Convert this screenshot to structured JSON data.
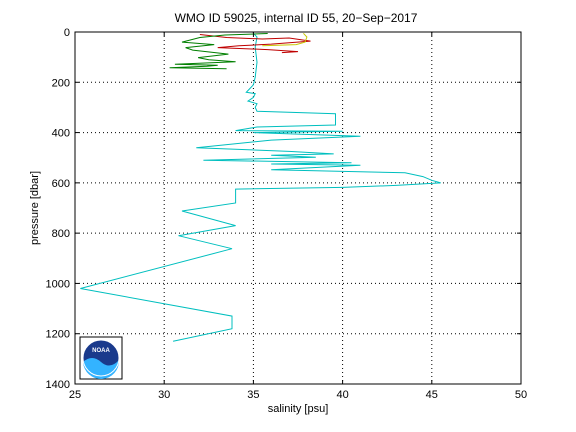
{
  "chart_data": {
    "type": "line",
    "title": "WMO ID 59025, internal ID 55, 20−Sep−2017",
    "xlabel": "salinity [psu]",
    "ylabel": "pressure [dbar]",
    "xlim": [
      25,
      50
    ],
    "ylim": [
      0,
      1400
    ],
    "y_reversed": true,
    "x_ticks": [
      25,
      30,
      35,
      40,
      45,
      50
    ],
    "y_ticks": [
      0,
      200,
      400,
      600,
      800,
      1000,
      1200,
      1400
    ],
    "grid": true,
    "logo": "NOAA",
    "series": [
      {
        "color": "#00bfbf",
        "points": [
          [
            35.0,
            5
          ],
          [
            35.2,
            20
          ],
          [
            35.1,
            60
          ],
          [
            35.2,
            120
          ],
          [
            35.1,
            180
          ],
          [
            35.0,
            210
          ],
          [
            34.8,
            225
          ],
          [
            34.6,
            240
          ],
          [
            35.1,
            245
          ],
          [
            35.0,
            260
          ],
          [
            34.7,
            275
          ],
          [
            35.2,
            285
          ],
          [
            35.1,
            300
          ],
          [
            35.2,
            315
          ],
          [
            39.6,
            325
          ],
          [
            39.6,
            370
          ],
          [
            35.2,
            378
          ],
          [
            34.0,
            392
          ],
          [
            40.0,
            395
          ],
          [
            35.0,
            400
          ],
          [
            41.0,
            415
          ],
          [
            36.0,
            430
          ],
          [
            31.8,
            460
          ],
          [
            37.0,
            475
          ],
          [
            39.5,
            485
          ],
          [
            36.0,
            490
          ],
          [
            38.5,
            498
          ],
          [
            32.2,
            510
          ],
          [
            40.5,
            520
          ],
          [
            36.0,
            525
          ],
          [
            41.0,
            530
          ],
          [
            36.0,
            548
          ],
          [
            43.5,
            560
          ],
          [
            44.5,
            575
          ],
          [
            45.0,
            590
          ],
          [
            45.5,
            600
          ],
          [
            43.0,
            610
          ],
          [
            40.0,
            618
          ],
          [
            34.0,
            625
          ],
          [
            34.0,
            680
          ],
          [
            31.0,
            712
          ],
          [
            34.0,
            770
          ],
          [
            30.8,
            810
          ],
          [
            33.8,
            862
          ],
          [
            25.3,
            1020
          ],
          [
            33.8,
            1130
          ],
          [
            33.8,
            1180
          ],
          [
            30.5,
            1230
          ]
        ]
      },
      {
        "color": "#bf0000",
        "points": [
          [
            32.0,
            10
          ],
          [
            33.5,
            22
          ],
          [
            35.5,
            28
          ],
          [
            37.0,
            24
          ],
          [
            38.2,
            36
          ],
          [
            36.0,
            48
          ],
          [
            34.2,
            55
          ],
          [
            33.0,
            62
          ],
          [
            35.8,
            70
          ],
          [
            37.5,
            78
          ],
          [
            36.6,
            82
          ]
        ]
      },
      {
        "color": "#c8c800",
        "points": [
          [
            37.8,
            5
          ],
          [
            38.0,
            20
          ],
          [
            37.9,
            40
          ],
          [
            37.4,
            50
          ],
          [
            35.5,
            55
          ]
        ]
      },
      {
        "color": "#007f00",
        "points": [
          [
            35.8,
            6
          ],
          [
            33.4,
            12
          ],
          [
            32.0,
            22
          ],
          [
            31.0,
            40
          ],
          [
            32.8,
            50
          ],
          [
            31.2,
            62
          ],
          [
            31.6,
            72
          ],
          [
            33.6,
            88
          ],
          [
            31.9,
            102
          ],
          [
            32.5,
            110
          ],
          [
            34.0,
            118
          ],
          [
            30.6,
            128
          ],
          [
            33.0,
            132
          ],
          [
            32.4,
            136
          ],
          [
            30.3,
            142
          ],
          [
            33.5,
            146
          ]
        ]
      }
    ]
  }
}
